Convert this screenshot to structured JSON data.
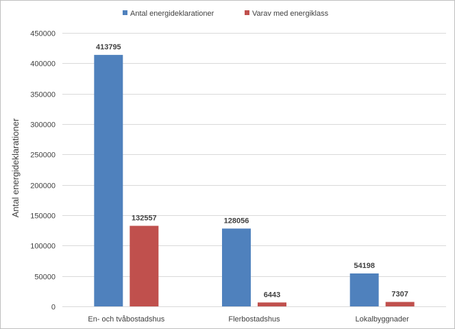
{
  "chart_data": {
    "type": "bar",
    "title": "",
    "xlabel": "",
    "ylabel": "Antal energideklarationer",
    "categories": [
      "En- och tvåbostadshus",
      "Flerbostadshus",
      "Lokalbyggnader"
    ],
    "series": [
      {
        "name": "Antal energideklarationer",
        "values": [
          413795,
          128056,
          54198
        ],
        "color": "#4f81bd"
      },
      {
        "name": "Varav med energiklass",
        "values": [
          132557,
          6443,
          7307
        ],
        "color": "#c0504d"
      }
    ],
    "ylim": [
      0,
      450000
    ],
    "yticks": [
      0,
      50000,
      100000,
      150000,
      200000,
      250000,
      300000,
      350000,
      400000,
      450000
    ],
    "grid": true,
    "legend_position": "top"
  }
}
